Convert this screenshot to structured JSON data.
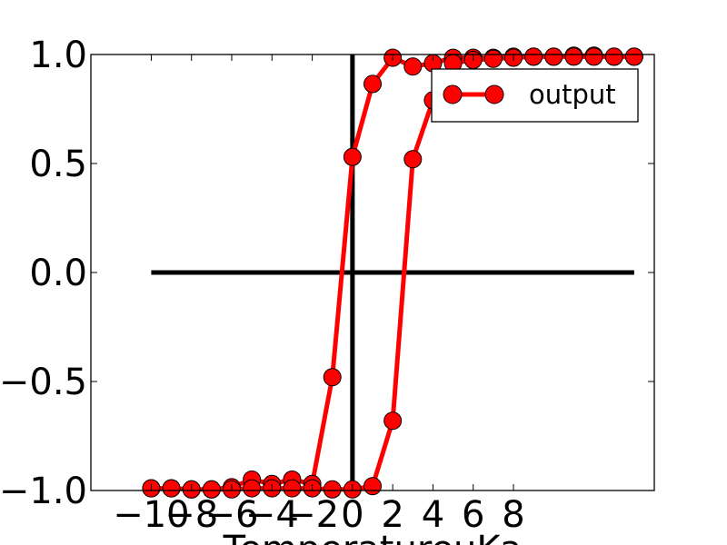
{
  "chart_data": {
    "type": "line",
    "title": "",
    "xlabel": "TemperatureuKa",
    "ylabel": "",
    "xlim": [
      -13,
      15
    ],
    "ylim": [
      -1.0,
      1.0
    ],
    "xticks": [
      -10,
      -8,
      -6,
      -4,
      -2,
      0,
      2,
      4,
      6,
      8
    ],
    "xtick_labels": [
      "−10",
      "−8",
      "−6",
      "−4",
      "−2",
      "0",
      "2",
      "4",
      "6",
      "8"
    ],
    "yticks": [
      -1.0,
      -0.5,
      0.0,
      0.5,
      1.0
    ],
    "ytick_labels": [
      "−1.0",
      "−0.5",
      "0.0",
      "0.5",
      "1.0"
    ],
    "grid": false,
    "legend": "top-right",
    "line_color": "#ff0000",
    "marker_fill": "#ff0000",
    "axis_line_color": "#000000",
    "reference_lines": [
      {
        "orientation": "horizontal",
        "y": 0.0,
        "x_range": [
          -10,
          14
        ]
      },
      {
        "orientation": "vertical",
        "x": 0.0
      }
    ],
    "series": [
      {
        "name": "output",
        "x": [
          -10,
          -9,
          -8,
          -7,
          -6,
          -5,
          -4,
          -3,
          -2,
          -1,
          0,
          1,
          2,
          3,
          4,
          5,
          6,
          7,
          8,
          9,
          10,
          11,
          12,
          13,
          14
        ],
        "y_branches": [
          [
            -0.99,
            -0.99,
            -0.995,
            -0.995,
            -0.985,
            -0.95,
            -0.97,
            -0.95,
            -0.97,
            -0.48,
            0.53,
            0.865,
            0.985,
            0.945,
            0.96,
            0.985,
            0.985,
            0.985,
            0.99,
            0.99,
            0.99,
            0.995,
            0.995,
            0.99,
            0.99
          ],
          [
            -0.99,
            -0.99,
            -0.995,
            -0.995,
            -0.995,
            -0.99,
            -0.99,
            -0.99,
            -0.99,
            -0.995,
            -0.995,
            -0.98,
            -0.68,
            0.52,
            0.79,
            0.96,
            0.975,
            0.98,
            0.985,
            0.99,
            0.99,
            0.99,
            0.99,
            0.99,
            0.99
          ]
        ],
        "path_x": [
          -10,
          -9,
          -8,
          -7,
          -6,
          -5,
          -4,
          -3,
          -2,
          -1,
          0,
          1,
          2,
          3,
          4,
          5,
          6,
          7,
          8,
          9,
          10,
          11,
          12,
          13,
          14,
          14,
          13,
          12,
          11,
          10,
          9,
          8,
          7,
          6,
          5,
          4,
          3,
          2,
          1,
          0,
          -1,
          -2,
          -3,
          -4,
          -5,
          -6,
          -7,
          -8,
          -9,
          -10
        ],
        "path_y": [
          -0.99,
          -0.99,
          -0.995,
          -0.995,
          -0.985,
          -0.95,
          -0.97,
          -0.95,
          -0.97,
          -0.48,
          0.53,
          0.865,
          0.985,
          0.945,
          0.96,
          0.985,
          0.985,
          0.985,
          0.99,
          0.99,
          0.99,
          0.995,
          0.995,
          0.99,
          0.99,
          0.99,
          0.99,
          0.99,
          0.99,
          0.99,
          0.99,
          0.985,
          0.98,
          0.975,
          0.96,
          0.79,
          0.52,
          -0.68,
          -0.98,
          -0.995,
          -0.995,
          -0.99,
          -0.99,
          -0.99,
          -0.99,
          -0.995,
          -0.995,
          -0.995,
          -0.99,
          -0.99
        ]
      }
    ]
  }
}
